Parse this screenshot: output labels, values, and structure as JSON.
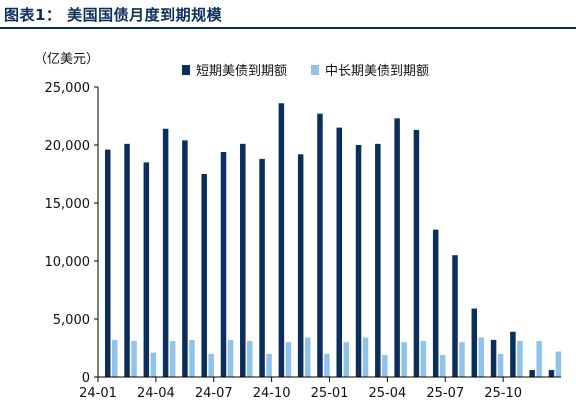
{
  "header": {
    "title": "图表1：  美国国债月度到期规模"
  },
  "chart_data": {
    "type": "bar",
    "title": "图表1：  美国国债月度到期规模",
    "unit_label": "（亿美元）",
    "categories": [
      "24-01",
      "24-02",
      "24-03",
      "24-04",
      "24-05",
      "24-06",
      "24-07",
      "24-08",
      "24-09",
      "24-10",
      "24-11",
      "24-12",
      "25-01",
      "25-02",
      "25-03",
      "25-04",
      "25-05",
      "25-06",
      "25-07",
      "25-08",
      "25-09",
      "25-10",
      "25-11",
      "25-12"
    ],
    "x_tick_labels": [
      "24-01",
      "24-04",
      "24-07",
      "24-10",
      "25-01",
      "25-04",
      "25-07",
      "25-10"
    ],
    "series": [
      {
        "name": "短期美债到期额",
        "color": "#0b2e5c",
        "values": [
          19600,
          20100,
          18500,
          21400,
          20400,
          17500,
          19400,
          20100,
          18800,
          23600,
          19200,
          22700,
          21500,
          20000,
          20100,
          22300,
          21300,
          12700,
          10500,
          5900,
          3200,
          3900,
          600,
          600
        ]
      },
      {
        "name": "中长期美债到期额",
        "color": "#8fc3ea",
        "values": [
          3200,
          3100,
          2100,
          3100,
          3200,
          2000,
          3200,
          3100,
          2000,
          3000,
          3400,
          2000,
          3000,
          3400,
          1900,
          3000,
          3100,
          1900,
          3000,
          3400,
          2000,
          3100,
          3100,
          2200
        ]
      }
    ],
    "ylim": [
      0,
      25000
    ],
    "yticks": [
      0,
      5000,
      10000,
      15000,
      20000,
      25000
    ],
    "ytick_labels": [
      "0",
      "5,000",
      "10,000",
      "15,000",
      "20,000",
      "25,000"
    ],
    "grid": false,
    "legend_position": "top"
  }
}
